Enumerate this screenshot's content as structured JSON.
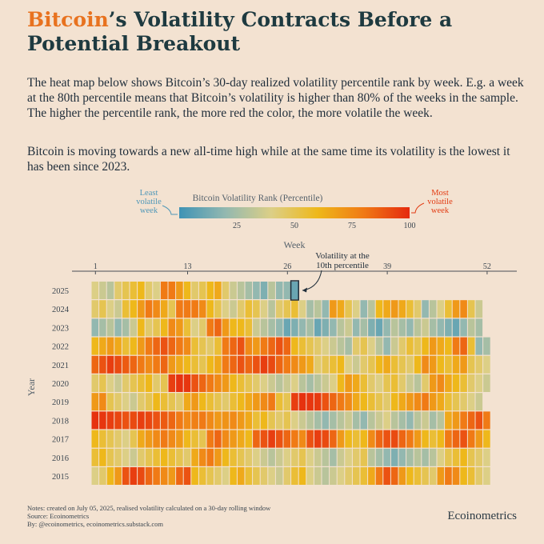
{
  "header": {
    "title_highlight": "Bitcoin",
    "title_rest": "’s Volatility Contracts Before a Potential Breakout",
    "paragraph1": "The heat map below shows Bitcoin’s 30-day realized volatility percentile rank by week. E.g. a week at the 80th percentile means that Bitcoin’s volatility is higher than 80% of the weeks in the sample. The higher the percentile rank, the more red the color, the more volatile the week.",
    "paragraph2": "Bitcoin is moving towards a new all-time high while at the same time its volatility is the lowest it has been since 2023."
  },
  "legend": {
    "title": "Bitcoin Volatility Rank (Percentile)",
    "least_label": [
      "Least",
      "volatile",
      "week"
    ],
    "most_label": [
      "Most",
      "volatile",
      "week"
    ],
    "ticks": [
      "25",
      "50",
      "75",
      "100"
    ],
    "colors": [
      "#3f93b5",
      "#93b8b0",
      "#dccf86",
      "#eeb81b",
      "#f07a15",
      "#e52a0e"
    ]
  },
  "annotation": {
    "lines": [
      "Volatility at the",
      "10th percentile"
    ],
    "week": 27,
    "year": "2025"
  },
  "footer": {
    "notes": "Notes: created on July 05, 2025, realised volatility calculated on a 30-day rolling window",
    "source": "Source: Ecoinometrics",
    "by": "By: @ecoinometrics, ecoinometrics.substack.com",
    "brand": "Ecoinometrics"
  },
  "chart_data": {
    "type": "heatmap",
    "xlabel": "Week",
    "ylabel": "Year",
    "x_ticks": [
      "1",
      "13",
      "26",
      "39",
      "52"
    ],
    "scale": [
      0,
      100
    ],
    "years": [
      "2025",
      "2024",
      "2023",
      "2022",
      "2021",
      "2020",
      "2019",
      "2018",
      "2017",
      "2016",
      "2015"
    ],
    "rows": [
      [
        40,
        35,
        30,
        45,
        50,
        55,
        60,
        45,
        40,
        80,
        80,
        70,
        60,
        45,
        50,
        60,
        65,
        45,
        35,
        30,
        25,
        20,
        15,
        30,
        20,
        20,
        10
      ],
      [
        45,
        50,
        40,
        35,
        55,
        60,
        70,
        80,
        75,
        65,
        50,
        80,
        80,
        80,
        75,
        60,
        50,
        40,
        35,
        45,
        55,
        50,
        40,
        30,
        45,
        50,
        55,
        40,
        25,
        30,
        20,
        70,
        65,
        50,
        40,
        20,
        30,
        60,
        65,
        70,
        65,
        55,
        45,
        20,
        30,
        40,
        55,
        70,
        75,
        50,
        35
      ],
      [
        20,
        25,
        30,
        20,
        25,
        35,
        60,
        45,
        50,
        60,
        75,
        70,
        55,
        40,
        45,
        80,
        85,
        70,
        60,
        60,
        55,
        35,
        30,
        25,
        20,
        10,
        15,
        20,
        25,
        10,
        15,
        20,
        30,
        35,
        20,
        25,
        15,
        10,
        20,
        30,
        25,
        20,
        30,
        35,
        25,
        20,
        15,
        10,
        20,
        30,
        25
      ],
      [
        60,
        65,
        70,
        65,
        55,
        60,
        70,
        80,
        85,
        90,
        85,
        80,
        75,
        55,
        50,
        45,
        55,
        80,
        85,
        90,
        75,
        70,
        80,
        85,
        90,
        85,
        60,
        55,
        50,
        45,
        40,
        35,
        30,
        25,
        45,
        50,
        40,
        30,
        20,
        35,
        45,
        55,
        50,
        60,
        70,
        65,
        60,
        80,
        85,
        55,
        20,
        25
      ],
      [
        85,
        90,
        95,
        92,
        88,
        85,
        80,
        75,
        80,
        85,
        70,
        65,
        60,
        55,
        50,
        60,
        65,
        80,
        85,
        90,
        85,
        90,
        95,
        92,
        85,
        80,
        75,
        70,
        65,
        45,
        50,
        55,
        60,
        40,
        35,
        45,
        50,
        60,
        65,
        55,
        50,
        45,
        60,
        75,
        70,
        60,
        55,
        65,
        70,
        50,
        45,
        40
      ],
      [
        45,
        50,
        40,
        35,
        45,
        50,
        55,
        60,
        45,
        50,
        95,
        98,
        97,
        90,
        85,
        80,
        75,
        70,
        60,
        55,
        50,
        45,
        40,
        35,
        30,
        35,
        40,
        30,
        25,
        30,
        35,
        40,
        60,
        70,
        65,
        55,
        45,
        40,
        50,
        55,
        45,
        35,
        30,
        45,
        70,
        75,
        65,
        60,
        55,
        45,
        40,
        35
      ],
      [
        70,
        75,
        50,
        45,
        40,
        35,
        45,
        50,
        60,
        55,
        50,
        45,
        65,
        70,
        60,
        55,
        50,
        45,
        55,
        60,
        65,
        70,
        75,
        80,
        55,
        50,
        95,
        98,
        97,
        96,
        90,
        85,
        80,
        75,
        65,
        60,
        55,
        50,
        45,
        60,
        65,
        70,
        75,
        80,
        70,
        65,
        55,
        50,
        45,
        40,
        35
      ],
      [
        98,
        97,
        95,
        93,
        90,
        92,
        95,
        93,
        90,
        88,
        85,
        80,
        75,
        78,
        80,
        75,
        70,
        72,
        75,
        70,
        65,
        55,
        60,
        50,
        45,
        50,
        40,
        35,
        30,
        25,
        20,
        25,
        30,
        35,
        25,
        20,
        30,
        35,
        40,
        30,
        25,
        20,
        30,
        35,
        25,
        30,
        65,
        70,
        80,
        85,
        90,
        80
      ],
      [
        60,
        55,
        50,
        45,
        40,
        50,
        65,
        70,
        75,
        80,
        75,
        70,
        60,
        55,
        50,
        80,
        85,
        75,
        70,
        65,
        60,
        85,
        90,
        95,
        90,
        85,
        80,
        75,
        90,
        95,
        92,
        85,
        70,
        60,
        55,
        60,
        75,
        85,
        90,
        92,
        85,
        80,
        70,
        60,
        55,
        60,
        80,
        85,
        90,
        80,
        70,
        60
      ],
      [
        55,
        60,
        50,
        45,
        40,
        35,
        45,
        50,
        55,
        60,
        55,
        50,
        45,
        65,
        75,
        80,
        70,
        60,
        55,
        50,
        45,
        40,
        35,
        30,
        35,
        40,
        45,
        50,
        40,
        35,
        30,
        25,
        35,
        40,
        45,
        50,
        30,
        25,
        20,
        15,
        20,
        25,
        30,
        25,
        30,
        40,
        50,
        55,
        60,
        50,
        45,
        40
      ],
      [
        40,
        45,
        60,
        70,
        90,
        95,
        92,
        85,
        80,
        75,
        70,
        85,
        90,
        60,
        55,
        50,
        45,
        40,
        60,
        65,
        55,
        50,
        45,
        40,
        35,
        45,
        55,
        60,
        40,
        35,
        30,
        35,
        40,
        45,
        50,
        55,
        65,
        80,
        90,
        85,
        70,
        60,
        55,
        50,
        45,
        70,
        80,
        75,
        60,
        55,
        45,
        40
      ]
    ]
  }
}
